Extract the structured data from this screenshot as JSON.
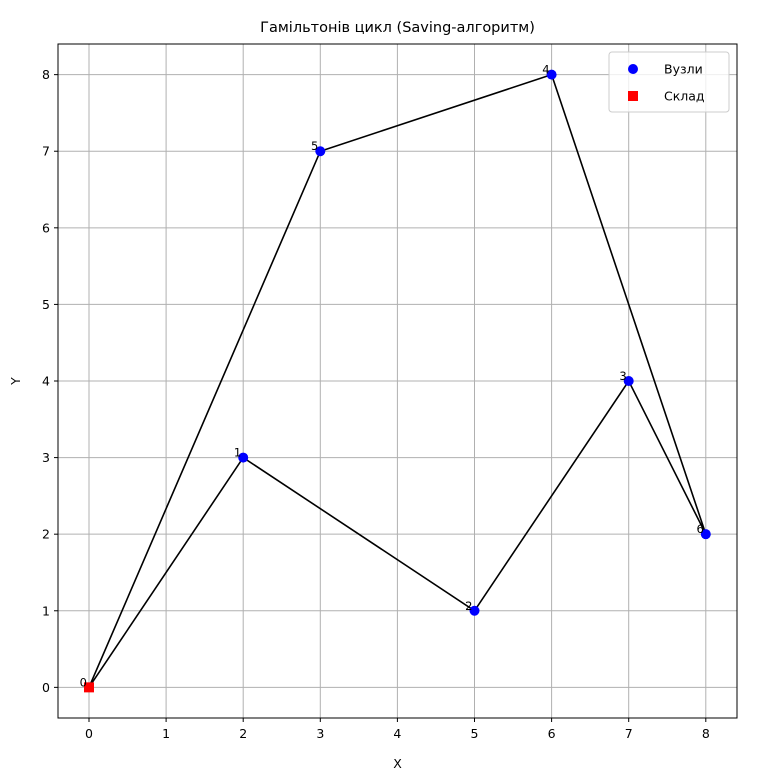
{
  "chart_data": {
    "type": "scatter",
    "title": "Гамільтонів цикл (Saving-алгоритм)",
    "xlabel": "X",
    "ylabel": "Y",
    "x_tick_labels": [
      "0",
      "1",
      "2",
      "3",
      "4",
      "5",
      "6",
      "7",
      "8"
    ],
    "y_ticks": [
      0,
      1,
      2,
      3,
      4,
      5,
      6,
      7,
      8
    ],
    "ylim": [
      -0.4,
      8.4
    ],
    "grid": true,
    "legend_position": "top-right",
    "series": [
      {
        "name": "Вузли",
        "marker": "circle",
        "color": "#0000ff",
        "points": [
          {
            "label": "1",
            "x": "2",
            "y": 3
          },
          {
            "label": "2",
            "x": "5",
            "y": 1
          },
          {
            "label": "3",
            "x": "7",
            "y": 4
          },
          {
            "label": "4",
            "x": "6",
            "y": 8
          },
          {
            "label": "5",
            "x": "3",
            "y": 7
          },
          {
            "label": "6",
            "x": "8",
            "y": 2
          }
        ]
      },
      {
        "name": "Склад",
        "marker": "square",
        "color": "#ff0000",
        "points": [
          {
            "label": "0",
            "x": "0",
            "y": 0
          }
        ]
      }
    ],
    "route": [
      "0",
      "1",
      "2",
      "3",
      "6",
      "4",
      "5",
      "0"
    ],
    "route_color": "#000000"
  }
}
